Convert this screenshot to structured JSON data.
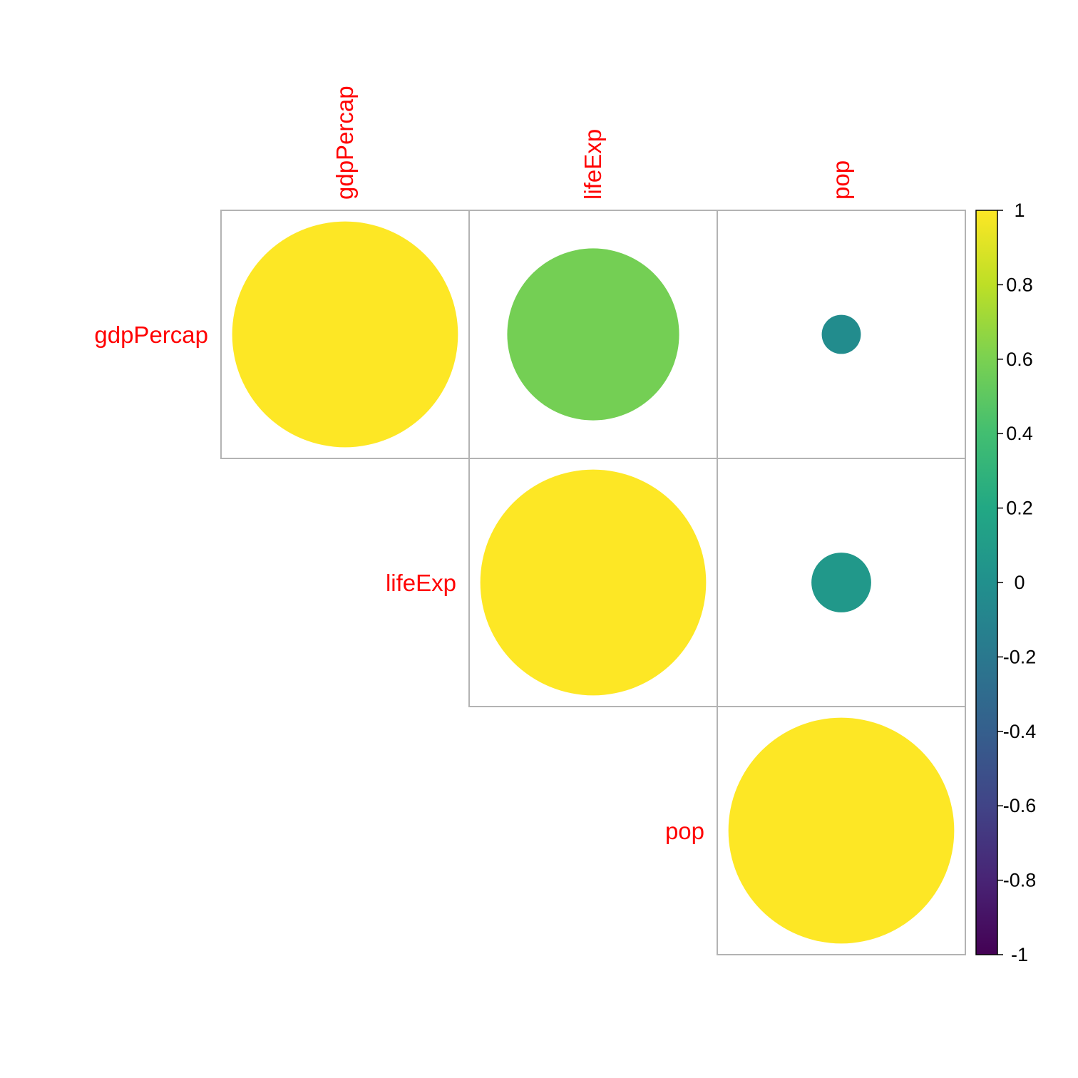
{
  "chart_data": {
    "type": "correlation-matrix",
    "method": "circle",
    "matrix_shape": "upper",
    "variables": [
      "gdpPercap",
      "lifeExp",
      "pop"
    ],
    "correlations": [
      [
        1.0,
        0.58,
        -0.03
      ],
      [
        0.58,
        1.0,
        0.07
      ],
      [
        -0.03,
        0.07,
        1.0
      ]
    ],
    "label_color": "#ff0000",
    "grid_color": "#b3b3b3",
    "colorbar": {
      "range": [
        -1,
        1
      ],
      "ticks": [
        "1",
        "0.8",
        "0.6",
        "0.4",
        "0.2",
        "0",
        "-0.2",
        "-0.4",
        "-0.6",
        "-0.8",
        "-1"
      ],
      "colormap": "viridis",
      "placement": "right"
    }
  }
}
